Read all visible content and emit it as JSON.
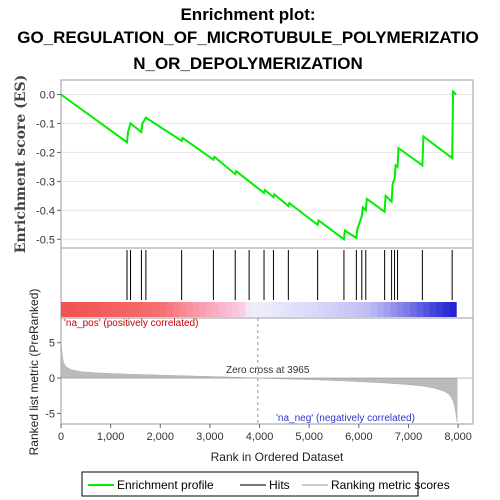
{
  "title_lines": [
    "Enrichment plot:",
    "GO_REGULATION_OF_MICROTUBULE_POLYMERIZATIO",
    "N_OR_DEPOLYMERIZATION"
  ],
  "colors": {
    "enrichment": "#00ee00",
    "hits": "#000000",
    "ranking": "#bbbbbb",
    "pos_bar": "#ff5555",
    "neg_bar": "#3333dd"
  },
  "chart_data": [
    {
      "type": "line",
      "name": "enrichment-profile",
      "ylabel": "Enrichment score (ES)",
      "xlim": [
        0,
        8300
      ],
      "ylim": [
        -0.53,
        0.05
      ],
      "yticks": [
        "0.0",
        "-0.1",
        "-0.2",
        "-0.3",
        "-0.4",
        "-0.5"
      ],
      "ytick_values": [
        0.0,
        -0.1,
        -0.2,
        -0.3,
        -0.4,
        -0.5
      ],
      "x": [
        0,
        1330,
        1350,
        1400,
        1620,
        1640,
        1710,
        2430,
        2450,
        3070,
        3090,
        3510,
        3530,
        4090,
        4110,
        4280,
        4300,
        4580,
        4600,
        5170,
        5190,
        5700,
        5720,
        5950,
        5970,
        6060,
        6080,
        6140,
        6160,
        6520,
        6540,
        6660,
        6680,
        6720,
        6740,
        6780,
        6800,
        7280,
        7300,
        7880,
        7900,
        7960
      ],
      "y": [
        0.0,
        -0.165,
        -0.13,
        -0.1,
        -0.13,
        -0.1,
        -0.08,
        -0.16,
        -0.15,
        -0.225,
        -0.215,
        -0.275,
        -0.265,
        -0.34,
        -0.33,
        -0.355,
        -0.345,
        -0.385,
        -0.375,
        -0.45,
        -0.435,
        -0.5,
        -0.47,
        -0.495,
        -0.465,
        -0.42,
        -0.39,
        -0.4,
        -0.36,
        -0.405,
        -0.35,
        -0.37,
        -0.31,
        -0.29,
        -0.245,
        -0.25,
        -0.185,
        -0.245,
        -0.145,
        -0.22,
        0.01,
        0.0
      ]
    },
    {
      "type": "scatter",
      "name": "hits",
      "x": [
        1330,
        1400,
        1620,
        1710,
        2430,
        3070,
        3510,
        3790,
        4090,
        4280,
        4580,
        5170,
        5700,
        5950,
        6060,
        6140,
        6520,
        6660,
        6720,
        6780,
        7280,
        7880
      ]
    },
    {
      "type": "area",
      "name": "ranking-metric",
      "ylabel": "Ranked list metric (PreRanked)",
      "xlabel": "Rank in Ordered Dataset",
      "xlim": [
        0,
        8300
      ],
      "ylim": [
        -6.5,
        8.5
      ],
      "yticks": [
        "5",
        "0",
        "-5"
      ],
      "ytick_values": [
        5,
        0,
        -5
      ],
      "xticks": [
        "0",
        "1,000",
        "2,000",
        "3,000",
        "4,000",
        "5,000",
        "6,000",
        "7,000",
        "8,000"
      ],
      "xtick_values": [
        0,
        1000,
        2000,
        3000,
        4000,
        5000,
        6000,
        7000,
        8000
      ],
      "x": [
        0,
        20,
        50,
        100,
        200,
        400,
        700,
        1000,
        1500,
        2000,
        2500,
        3000,
        3500,
        3965,
        4500,
        5000,
        5500,
        6000,
        6500,
        7000,
        7300,
        7500,
        7700,
        7800,
        7850,
        7900,
        7930,
        7960,
        7980
      ],
      "y": [
        5.5,
        3.5,
        2.2,
        1.6,
        1.2,
        0.9,
        0.75,
        0.65,
        0.52,
        0.42,
        0.32,
        0.22,
        0.12,
        0.0,
        -0.12,
        -0.22,
        -0.34,
        -0.5,
        -0.68,
        -0.92,
        -1.15,
        -1.4,
        -1.8,
        -2.2,
        -2.6,
        -3.2,
        -4.0,
        -5.2,
        -6.2
      ],
      "zero_cross": 3965
    }
  ],
  "annotations": {
    "pos": "'na_pos' (positively correlated)",
    "neg": "'na_neg' (negatively correlated)",
    "zero": "Zero cross at 3965"
  },
  "legend": [
    "Enrichment profile",
    "Hits",
    "Ranking metric scores"
  ]
}
